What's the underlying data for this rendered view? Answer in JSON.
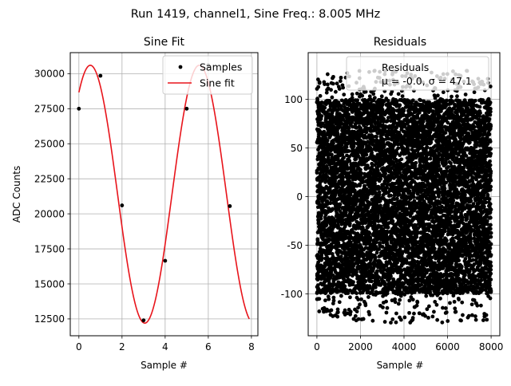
{
  "suptitle": "Run 1419, channel1, Sine Freq.: 8.005 MHz",
  "chart_data": [
    {
      "type": "line",
      "title": "Sine Fit",
      "xlabel": "Sample #",
      "ylabel": "ADC Counts",
      "xlim": [
        -0.4,
        8.3
      ],
      "ylim": [
        11300,
        31500
      ],
      "xticks": [
        0,
        2,
        4,
        6,
        8
      ],
      "yticks": [
        12500,
        15000,
        17500,
        20000,
        22500,
        25000,
        27500,
        30000
      ],
      "grid": true,
      "legend_position": "top-right",
      "series": [
        {
          "name": "Samples",
          "style": "points",
          "color": "#000000",
          "x": [
            0,
            1,
            2,
            3,
            4,
            5,
            6,
            7
          ],
          "y": [
            27500,
            29850,
            20600,
            12400,
            16650,
            27500,
            30600,
            20550
          ]
        },
        {
          "name": "Sine fit",
          "style": "line",
          "color": "#e8141b",
          "model": {
            "amplitude": 9200,
            "offset": 21400,
            "period": 5.05,
            "phase_rad": 0.91
          },
          "x_range": [
            0,
            7.9
          ]
        }
      ]
    },
    {
      "type": "scatter",
      "title": "Residuals",
      "xlabel": "Sample #",
      "ylabel": "",
      "xlim": [
        -400,
        8400
      ],
      "ylim": [
        -143,
        148
      ],
      "xticks": [
        0,
        2000,
        4000,
        6000,
        8000
      ],
      "yticks": [
        -100,
        -50,
        0,
        50,
        100
      ],
      "grid": true,
      "legend_position": "top-right",
      "n_points": 8000,
      "mean": -0.0,
      "sigma": 47.1,
      "series": [
        {
          "name": "Residuals",
          "label_stats": "μ = -0.0, σ = 47.1",
          "color": "#000000"
        }
      ]
    }
  ]
}
